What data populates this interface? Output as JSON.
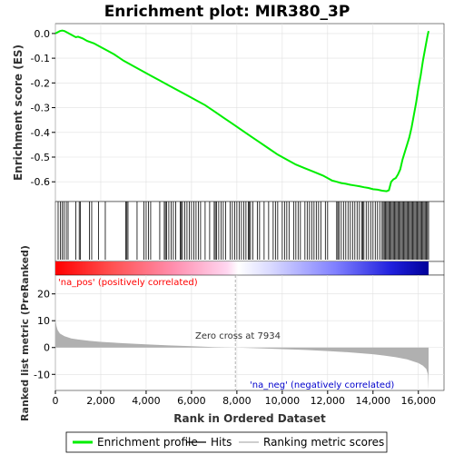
{
  "chart_data": {
    "type": "line",
    "title": "Enrichment plot: MIR380_3P",
    "xlabel": "Rank in Ordered Dataset",
    "es_panel": {
      "ylabel": "Enrichment score (ES)",
      "ylim": [
        -0.68,
        0.04
      ],
      "yticks": [
        "0.0",
        "-0.1",
        "-0.2",
        "-0.3",
        "-0.4",
        "-0.5",
        "-0.6"
      ],
      "ytick_values": [
        0.0,
        -0.1,
        -0.2,
        -0.3,
        -0.4,
        -0.5,
        -0.6
      ],
      "line_color": "#00ee00",
      "x": [
        0,
        100,
        200,
        300,
        400,
        500,
        700,
        900,
        1000,
        1200,
        1400,
        1700,
        2000,
        2300,
        2600,
        3000,
        3400,
        3800,
        4200,
        4600,
        5000,
        5400,
        5800,
        6200,
        6600,
        7000,
        7400,
        7800,
        8200,
        8600,
        9000,
        9400,
        9800,
        10200,
        10600,
        11000,
        11400,
        11800,
        12000,
        12200,
        12400,
        12600,
        12800,
        13000,
        13200,
        13400,
        13600,
        13800,
        14000,
        14200,
        14400,
        14600,
        14700,
        14800,
        14900,
        15000,
        15100,
        15200,
        15300,
        15400,
        15500,
        15600,
        15700,
        15800,
        15900,
        16000,
        16100,
        16200,
        16300,
        16400,
        16450
      ],
      "y": [
        0.0,
        0.005,
        0.01,
        0.012,
        0.01,
        0.005,
        -0.005,
        -0.015,
        -0.013,
        -0.02,
        -0.03,
        -0.04,
        -0.055,
        -0.07,
        -0.085,
        -0.11,
        -0.13,
        -0.15,
        -0.17,
        -0.19,
        -0.21,
        -0.23,
        -0.25,
        -0.27,
        -0.29,
        -0.315,
        -0.34,
        -0.365,
        -0.39,
        -0.415,
        -0.44,
        -0.465,
        -0.49,
        -0.51,
        -0.53,
        -0.545,
        -0.56,
        -0.575,
        -0.585,
        -0.595,
        -0.6,
        -0.605,
        -0.608,
        -0.612,
        -0.615,
        -0.618,
        -0.622,
        -0.625,
        -0.63,
        -0.632,
        -0.636,
        -0.638,
        -0.634,
        -0.6,
        -0.59,
        -0.585,
        -0.57,
        -0.55,
        -0.51,
        -0.48,
        -0.45,
        -0.42,
        -0.38,
        -0.33,
        -0.28,
        -0.22,
        -0.17,
        -0.11,
        -0.06,
        -0.01,
        0.01
      ]
    },
    "hits": [
      120,
      220,
      300,
      380,
      480,
      560,
      900,
      1050,
      1100,
      1500,
      1600,
      1900,
      2200,
      3100,
      3150,
      3200,
      3600,
      3900,
      4000,
      4100,
      4200,
      4600,
      4800,
      4850,
      4900,
      5000,
      5100,
      5200,
      5300,
      5500,
      5550,
      5600,
      5700,
      5800,
      5900,
      6000,
      6100,
      6200,
      6300,
      6400,
      6600,
      6800,
      7000,
      7050,
      7100,
      7200,
      7300,
      7400,
      7500,
      7700,
      7800,
      7900,
      8000,
      8100,
      8200,
      8300,
      8400,
      8500,
      8550,
      8600,
      8700,
      8900,
      9000,
      9200,
      9400,
      9600,
      9700,
      9800,
      10000,
      10100,
      10200,
      10300,
      10500,
      10600,
      10700,
      10800,
      11000,
      11100,
      11200,
      11300,
      11400,
      11500,
      11600,
      11700,
      11900,
      12000,
      12400,
      12450,
      12500,
      12600,
      12700,
      12800,
      12900,
      13000,
      13100,
      13200,
      13300,
      13400,
      13500,
      13550,
      13600,
      13700,
      13800,
      13900,
      14000,
      14100,
      14200,
      14300,
      14400,
      14450,
      14500,
      14550,
      14600,
      14650,
      14700,
      14750,
      14800,
      14850,
      14900,
      14950,
      15000,
      15050,
      15100,
      15150,
      15200,
      15250,
      15300,
      15350,
      15400,
      15450,
      15500,
      15550,
      15600,
      15650,
      15700,
      15750,
      15800,
      15850,
      15900,
      15950,
      16000,
      16050,
      16100,
      16150,
      16200,
      16250,
      16300,
      16350,
      16400,
      16450
    ],
    "metric_panel": {
      "ylabel": "Ranked list metric (PreRanked)",
      "ylim": [
        -16,
        27
      ],
      "yticks": [
        "20",
        "10",
        "0",
        "-10"
      ],
      "ytick_values": [
        20,
        10,
        0,
        -10
      ],
      "fill_color": "#b0b0b0",
      "x": [
        0,
        50,
        100,
        200,
        400,
        700,
        1000,
        1500,
        2000,
        3000,
        4000,
        5000,
        6000,
        7000,
        7934,
        9000,
        10000,
        11000,
        12000,
        13000,
        14000,
        14500,
        15000,
        15500,
        16000,
        16200,
        16350,
        16420,
        16450
      ],
      "y": [
        10.5,
        8.0,
        6.5,
        5.2,
        4.2,
        3.4,
        3.0,
        2.5,
        2.1,
        1.6,
        1.2,
        0.8,
        0.5,
        0.2,
        0.0,
        -0.3,
        -0.6,
        -0.9,
        -1.3,
        -1.8,
        -2.5,
        -3.0,
        -3.6,
        -4.4,
        -5.8,
        -6.8,
        -8.0,
        -10.0,
        -16.0
      ]
    },
    "xlim": [
      0,
      16450
    ],
    "xticks": [
      "0",
      "2,000",
      "4,000",
      "6,000",
      "8,000",
      "10,000",
      "12,000",
      "14,000",
      "16,000"
    ],
    "xtick_values": [
      0,
      2000,
      4000,
      6000,
      8000,
      10000,
      12000,
      14000,
      16000
    ],
    "zero_cross": 7934,
    "annotations": {
      "pos_label": "'na_pos' (positively correlated)",
      "neg_label": "'na_neg' (negatively correlated)",
      "zero_label": "Zero cross at 7934",
      "pos_color": "#ff0000",
      "neg_color": "#0000cc"
    },
    "legend": [
      {
        "label": "Enrichment profile",
        "color": "#00ee00"
      },
      {
        "label": "Hits",
        "color": "#000000"
      },
      {
        "label": "Ranking metric scores",
        "color": "#b0b0b0"
      }
    ],
    "grid": true,
    "legend_placement": "bottom"
  }
}
